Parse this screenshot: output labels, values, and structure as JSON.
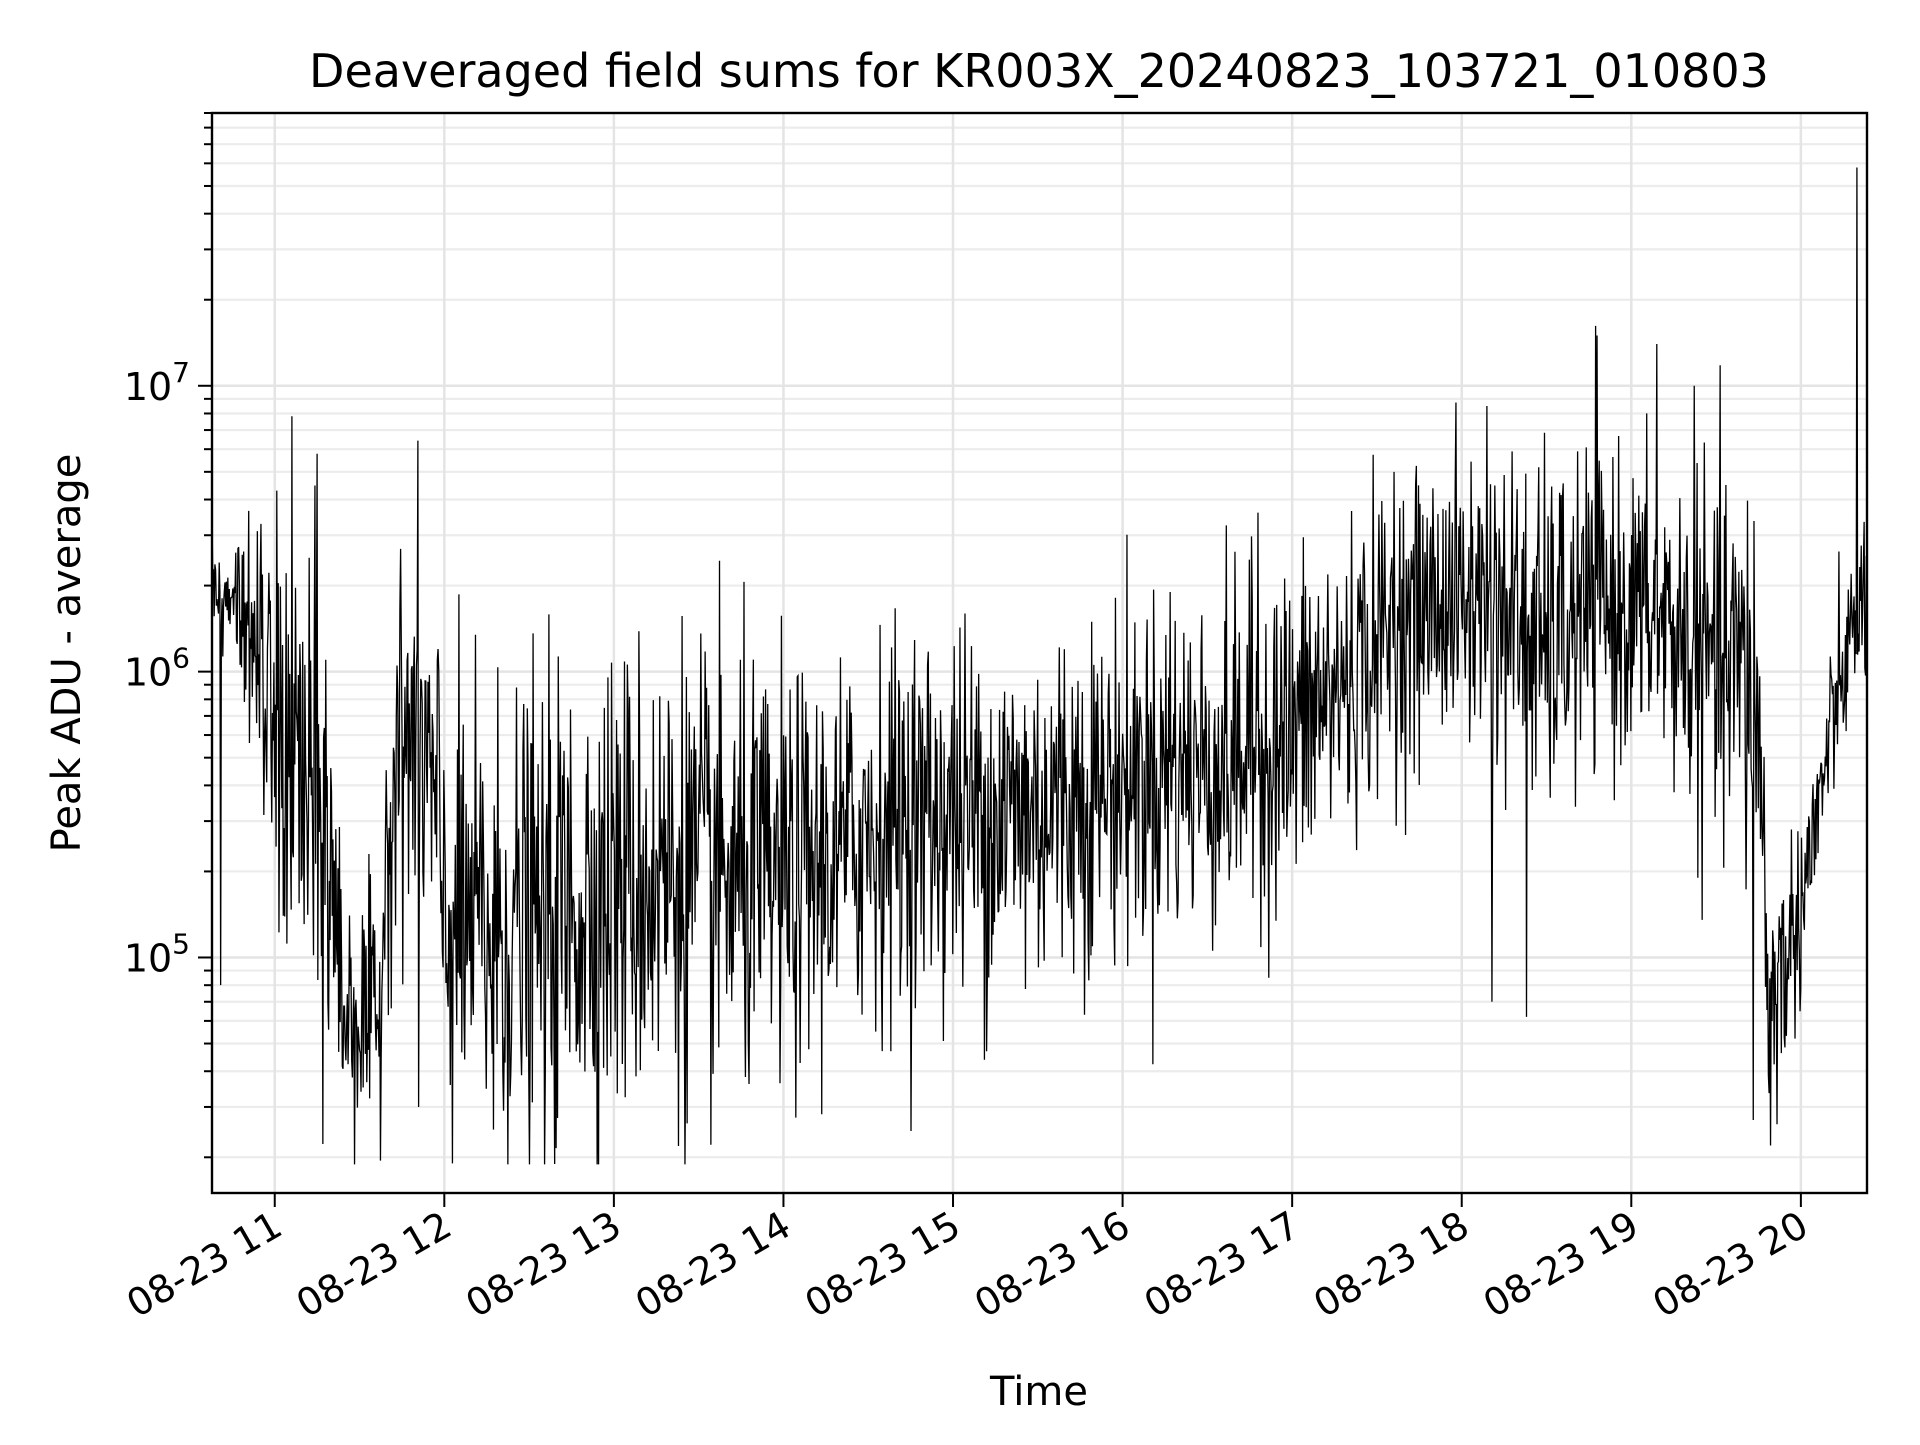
{
  "chart_data": {
    "type": "line",
    "title": "Deaveraged field sums for KR003X_20240823_103721_010803",
    "xlabel": "Time",
    "ylabel": "Peak ADU - average",
    "yscale": "log",
    "ylim": [
      15000,
      90000000
    ],
    "xlim_hours": [
      10.63,
      20.39
    ],
    "x_ticks": [
      {
        "hour": 11,
        "label": "08-23 11"
      },
      {
        "hour": 12,
        "label": "08-23 12"
      },
      {
        "hour": 13,
        "label": "08-23 13"
      },
      {
        "hour": 14,
        "label": "08-23 14"
      },
      {
        "hour": 15,
        "label": "08-23 15"
      },
      {
        "hour": 16,
        "label": "08-23 16"
      },
      {
        "hour": 17,
        "label": "08-23 17"
      },
      {
        "hour": 18,
        "label": "08-23 18"
      },
      {
        "hour": 19,
        "label": "08-23 19"
      },
      {
        "hour": 20,
        "label": "08-23 20"
      }
    ],
    "y_ticks": [
      {
        "value": 100000,
        "base": "10",
        "exp": "5"
      },
      {
        "value": 1000000,
        "base": "10",
        "exp": "6"
      },
      {
        "value": 10000000,
        "base": "10",
        "exp": "7"
      }
    ],
    "grid": true,
    "series": [
      {
        "name": "field sums",
        "color": "#000000",
        "envelope": {
          "hours": [
            10.63,
            10.75,
            10.86,
            10.95,
            11.1,
            11.25,
            11.4,
            11.52,
            11.62,
            11.72,
            11.85,
            12.0,
            12.3,
            12.6,
            13.0,
            13.4,
            13.7,
            14.0,
            14.3,
            14.6,
            15.0,
            15.4,
            15.8,
            16.2,
            16.6,
            17.0,
            17.3,
            17.6,
            17.9,
            18.2,
            18.5,
            18.8,
            19.1,
            19.4,
            19.6,
            19.72,
            19.8,
            19.9,
            20.0,
            20.1,
            20.2,
            20.3,
            20.39
          ],
          "center": [
            1900000,
            1800000,
            1500000,
            700000,
            500000,
            300000,
            70000,
            60000,
            55000,
            500000,
            600000,
            130000,
            120000,
            130000,
            180000,
            200000,
            180000,
            180000,
            220000,
            300000,
            320000,
            320000,
            380000,
            450000,
            480000,
            600000,
            900000,
            1400000,
            1800000,
            1700000,
            1200000,
            1700000,
            1600000,
            1100000,
            1000000,
            900000,
            70000,
            90000,
            150000,
            300000,
            700000,
            1300000,
            2000000
          ],
          "spread": [
            0.2,
            0.2,
            0.35,
            0.6,
            0.8,
            0.9,
            0.45,
            0.4,
            0.4,
            0.55,
            0.65,
            0.7,
            0.75,
            0.75,
            0.75,
            0.75,
            0.7,
            0.65,
            0.6,
            0.6,
            0.6,
            0.6,
            0.55,
            0.55,
            0.55,
            0.55,
            0.5,
            0.45,
            0.45,
            0.5,
            0.55,
            0.5,
            0.45,
            0.55,
            0.6,
            0.7,
            0.45,
            0.35,
            0.3,
            0.3,
            0.25,
            0.25,
            0.3
          ]
        },
        "spikes": [
          {
            "hour": 10.63,
            "value": 3500000
          },
          {
            "hour": 10.68,
            "value": 80000
          },
          {
            "hour": 11.3,
            "value": 1100000
          },
          {
            "hour": 11.72,
            "value": 1050000
          },
          {
            "hour": 11.85,
            "value": 30000
          },
          {
            "hour": 12.29,
            "value": 25000
          },
          {
            "hour": 15.2,
            "value": 47000
          },
          {
            "hour": 16.28,
            "value": 1900000
          },
          {
            "hour": 16.8,
            "value": 3600000
          },
          {
            "hour": 17.6,
            "value": 5000000
          },
          {
            "hour": 18.15,
            "value": 8500000
          },
          {
            "hour": 18.18,
            "value": 70000
          },
          {
            "hour": 18.38,
            "value": 62000
          },
          {
            "hour": 18.8,
            "value": 15000000
          },
          {
            "hour": 19.15,
            "value": 14000000
          },
          {
            "hour": 19.37,
            "value": 10000000
          },
          {
            "hour": 19.72,
            "value": 27000
          },
          {
            "hour": 19.82,
            "value": 22000
          },
          {
            "hour": 20.33,
            "value": 58000000
          }
        ]
      }
    ]
  }
}
